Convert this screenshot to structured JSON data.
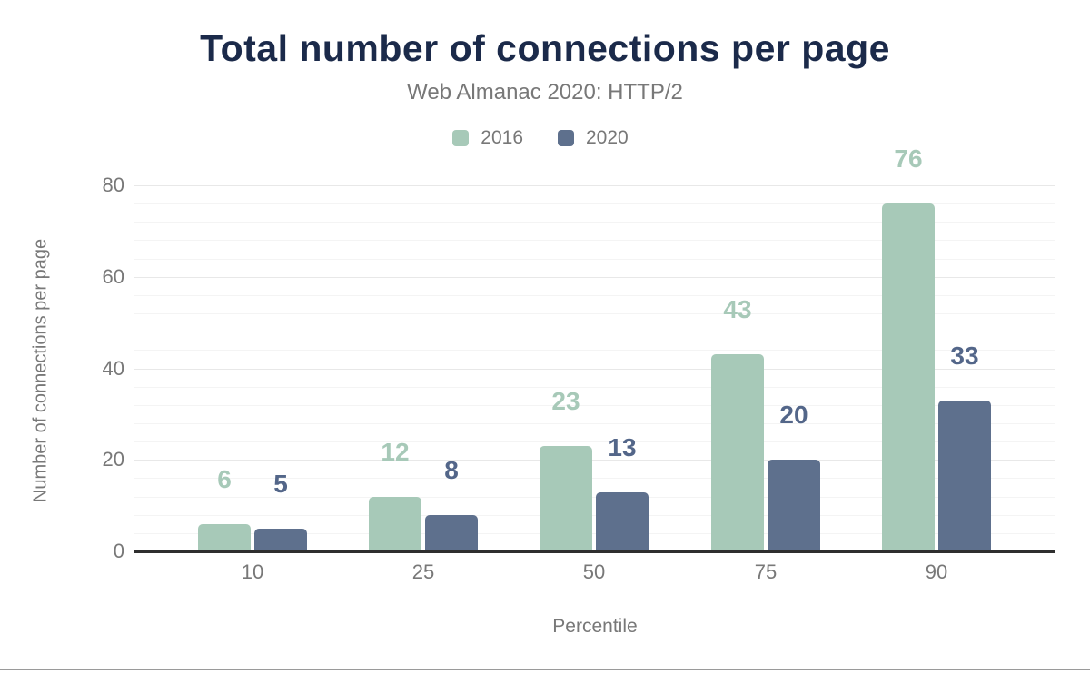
{
  "header": {
    "title": "Total number of connections per page",
    "subtitle": "Web Almanac 2020: HTTP/2"
  },
  "chart_data": {
    "type": "bar",
    "title": "Total number of connections per page",
    "subtitle": "Web Almanac 2020: HTTP/2",
    "categories": [
      "10",
      "25",
      "50",
      "75",
      "90"
    ],
    "series": [
      {
        "name": "2016",
        "color": "#a7c9b8",
        "label_color": "#a7c9b8",
        "values": [
          6,
          12,
          23,
          43,
          76
        ]
      },
      {
        "name": "2020",
        "color": "#5e708d",
        "label_color": "#536689",
        "values": [
          5,
          8,
          13,
          20,
          33
        ]
      }
    ],
    "xlabel": "Percentile",
    "ylabel": "Number of connections per page",
    "ylim": [
      0,
      80
    ],
    "yticks": [
      0,
      20,
      40,
      60,
      80
    ],
    "minor_grid_step": 4,
    "grid": true,
    "legend_position": "top",
    "value_labels_shown": true
  },
  "colors": {
    "title": "#1b2a4a",
    "muted_text": "#787878",
    "axis_line": "#2f2f2f",
    "major_gridline": "#e8e8e8",
    "minor_gridline": "#f4f4f4",
    "series_2016": "#a7c9b8",
    "series_2020": "#5e708d"
  }
}
